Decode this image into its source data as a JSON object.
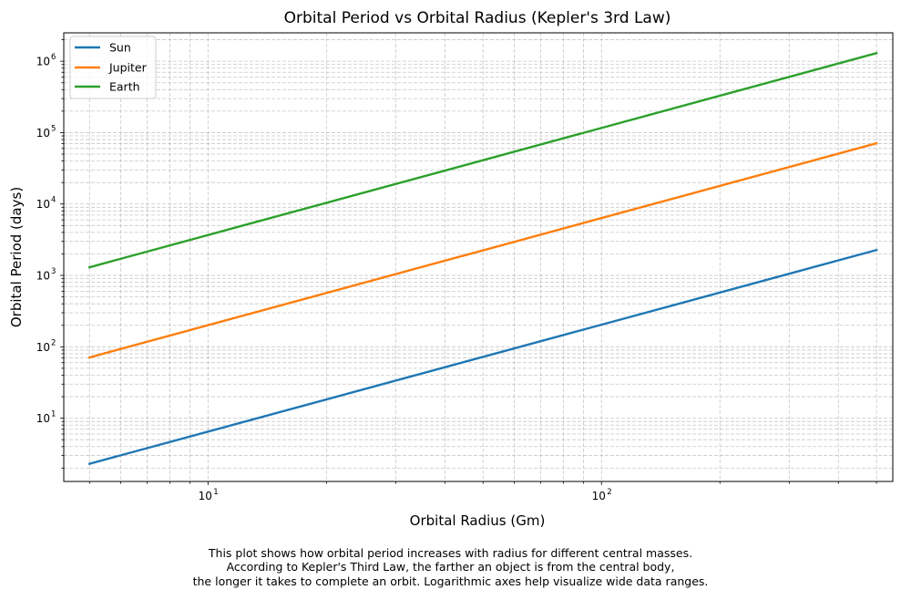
{
  "chart_data": {
    "type": "line",
    "title": "Orbital Period vs Orbital Radius (Kepler's 3rd Law)",
    "xlabel": "Orbital Radius (Gm)",
    "ylabel": "Orbital Period (days)",
    "xscale": "log",
    "yscale": "log",
    "xlim": [
      4.3,
      550
    ],
    "ylim": [
      1.3,
      2500000
    ],
    "x_ticks": [
      {
        "base": "10",
        "exp": "1",
        "value": 10
      },
      {
        "base": "10",
        "exp": "2",
        "value": 100
      }
    ],
    "y_ticks": [
      {
        "base": "10",
        "exp": "1",
        "value": 10
      },
      {
        "base": "10",
        "exp": "2",
        "value": 100
      },
      {
        "base": "10",
        "exp": "3",
        "value": 1000
      },
      {
        "base": "10",
        "exp": "4",
        "value": 10000
      },
      {
        "base": "10",
        "exp": "5",
        "value": 100000
      },
      {
        "base": "10",
        "exp": "6",
        "value": 1000000
      }
    ],
    "grid": "both major and minor, dashed",
    "legend_position": "top-left",
    "series": [
      {
        "name": "Sun",
        "color": "#1f77b4",
        "x": [
          5,
          500
        ],
        "y": [
          2.3,
          2270
        ]
      },
      {
        "name": "Jupiter",
        "color": "#ff7f0e",
        "x": [
          5,
          500
        ],
        "y": [
          71,
          71000
        ]
      },
      {
        "name": "Earth",
        "color": "#2ca02c",
        "x": [
          5,
          500
        ],
        "y": [
          1300,
          1300000
        ]
      }
    ]
  },
  "caption": {
    "lines": [
      "This plot shows how orbital period increases with radius for different central masses.",
      "According to Kepler's Third Law, the farther an object is from the central body,",
      "the longer it takes to complete an orbit. Logarithmic axes help visualize wide data ranges."
    ]
  }
}
